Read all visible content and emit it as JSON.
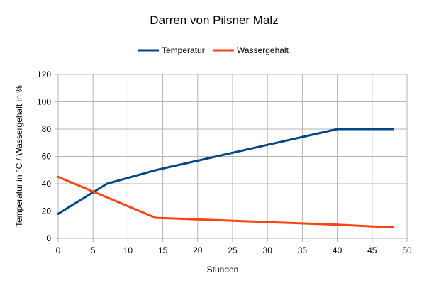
{
  "chart_data": {
    "type": "line",
    "title": "Darren von Pilsner Malz",
    "xlabel": "Stunden",
    "ylabel": "Temperatur in °C / Wassergehalt in %",
    "xlim": [
      0,
      50
    ],
    "ylim": [
      0,
      120
    ],
    "xticks": [
      0,
      5,
      10,
      15,
      20,
      25,
      30,
      35,
      40,
      45,
      50
    ],
    "yticks": [
      0,
      20,
      40,
      60,
      80,
      100,
      120
    ],
    "grid": true,
    "legend_position": "top",
    "series": [
      {
        "name": "Temperatur",
        "color": "#004586",
        "points": [
          [
            0,
            18
          ],
          [
            7,
            40
          ],
          [
            14,
            50
          ],
          [
            40,
            80
          ],
          [
            48,
            80
          ]
        ]
      },
      {
        "name": "Wassergehalt",
        "color": "#ff420e",
        "points": [
          [
            0,
            45
          ],
          [
            14,
            15
          ],
          [
            40,
            10
          ],
          [
            48,
            8
          ]
        ]
      }
    ]
  }
}
